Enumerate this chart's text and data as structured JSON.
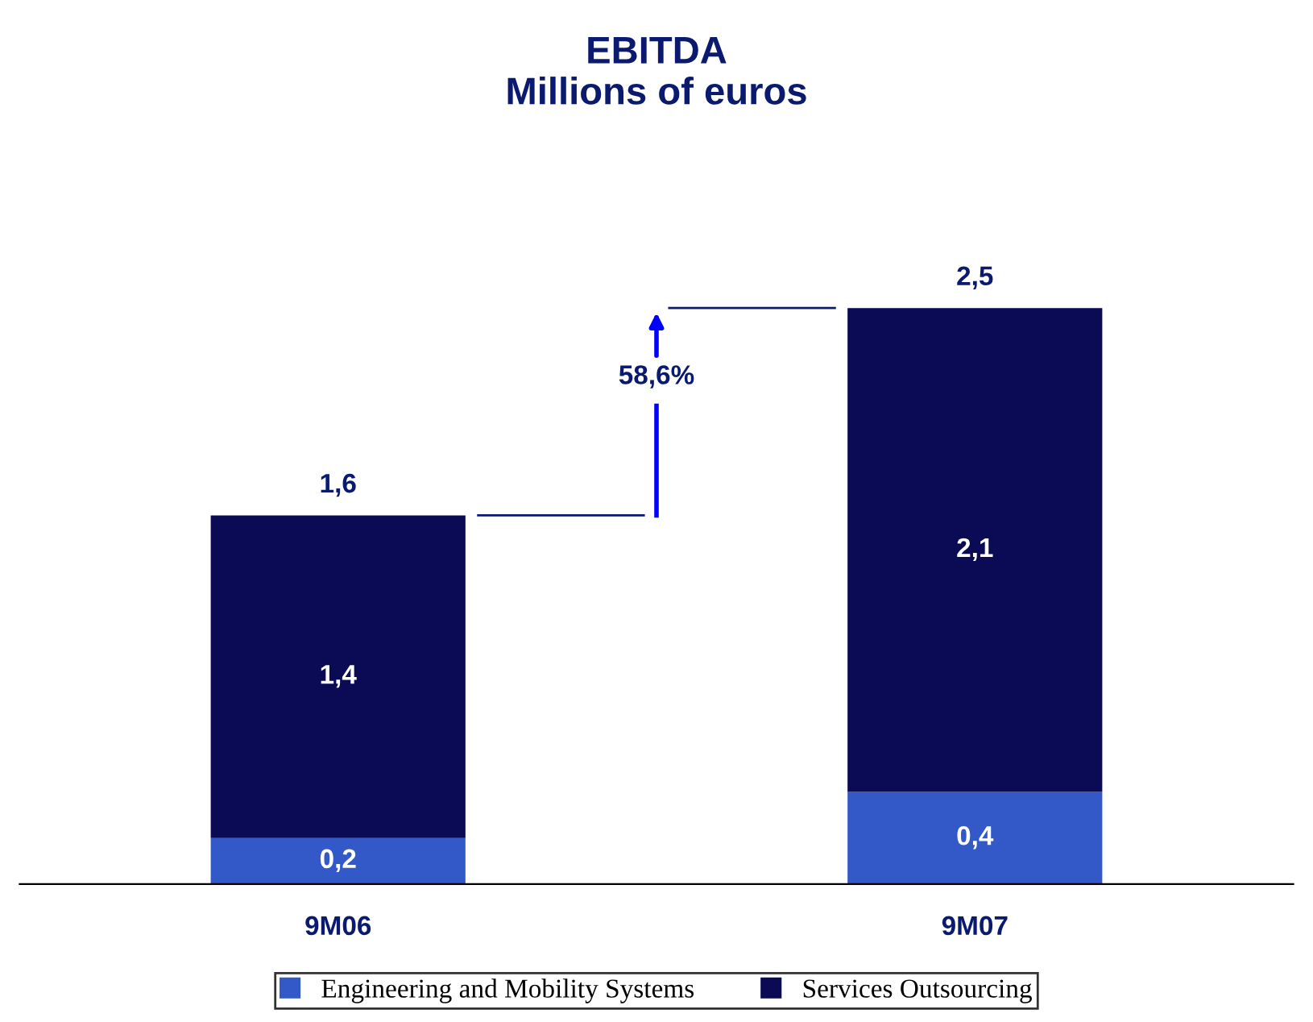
{
  "chart_data": {
    "type": "bar",
    "title": "EBITDA",
    "subtitle": "Millions of euros",
    "categories": [
      "9M06",
      "9M07"
    ],
    "stacked": true,
    "tick_labels": "x",
    "legend": "bottom",
    "series": [
      {
        "name": "Engineering and Mobility Systems",
        "color": "#3359c8",
        "values": [
          0.2,
          0.4
        ],
        "value_labels": [
          "0,2",
          "0,4"
        ]
      },
      {
        "name": "Services Outsourcing",
        "color": "#0a0a55",
        "values": [
          1.4,
          2.1
        ],
        "value_labels": [
          "1,4",
          "2,1"
        ]
      }
    ],
    "totals": [
      "1,6",
      "2,5"
    ],
    "annotations": [
      "58,6%"
    ]
  }
}
